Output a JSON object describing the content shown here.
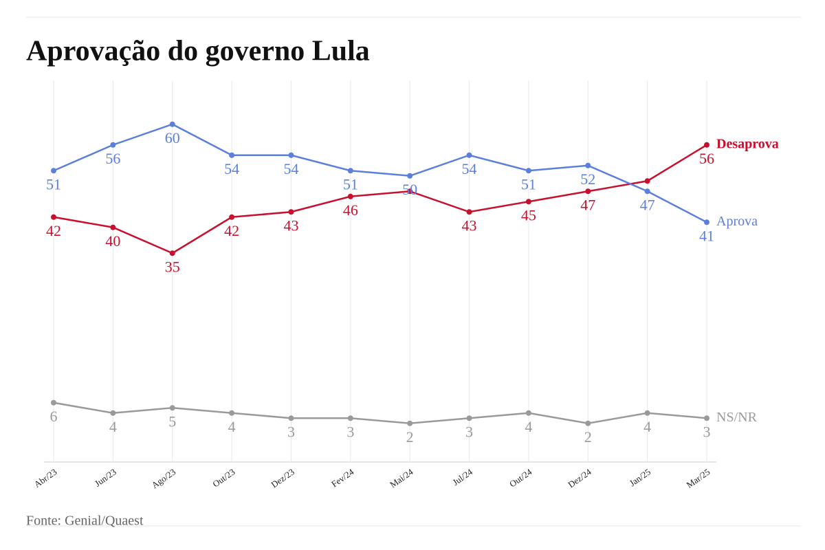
{
  "chart_data": {
    "type": "line",
    "title": "Aprovação do governo Lula",
    "source": "Fonte: Genial/Quaest",
    "categories": [
      "Abr/23",
      "Jun/23",
      "Ago/23",
      "Out/23",
      "Dez/23",
      "Fev/24",
      "Mai/24",
      "Jul/24",
      "Out/24",
      "Dez/24",
      "Jan/25",
      "Mar/25"
    ],
    "series": [
      {
        "name": "Desaprova",
        "color": "#c8102e",
        "values": [
          42,
          40,
          35,
          42,
          43,
          46,
          47,
          43,
          45,
          47,
          49,
          56
        ],
        "value_labels": [
          "42",
          "40",
          "35",
          "42",
          "43",
          "46",
          null,
          "43",
          "45",
          "47",
          null,
          "56"
        ]
      },
      {
        "name": "Aprova",
        "color": "#5b7fdb",
        "values": [
          51,
          56,
          60,
          54,
          54,
          51,
          50,
          54,
          51,
          52,
          47,
          41
        ]
      },
      {
        "name": "NS/NR",
        "color": "#9a9a9a",
        "values": [
          6,
          4,
          5,
          4,
          3,
          3,
          2,
          3,
          4,
          2,
          4,
          3
        ]
      }
    ],
    "ylim": [
      -5.5,
      68.5
    ],
    "grid": true
  }
}
